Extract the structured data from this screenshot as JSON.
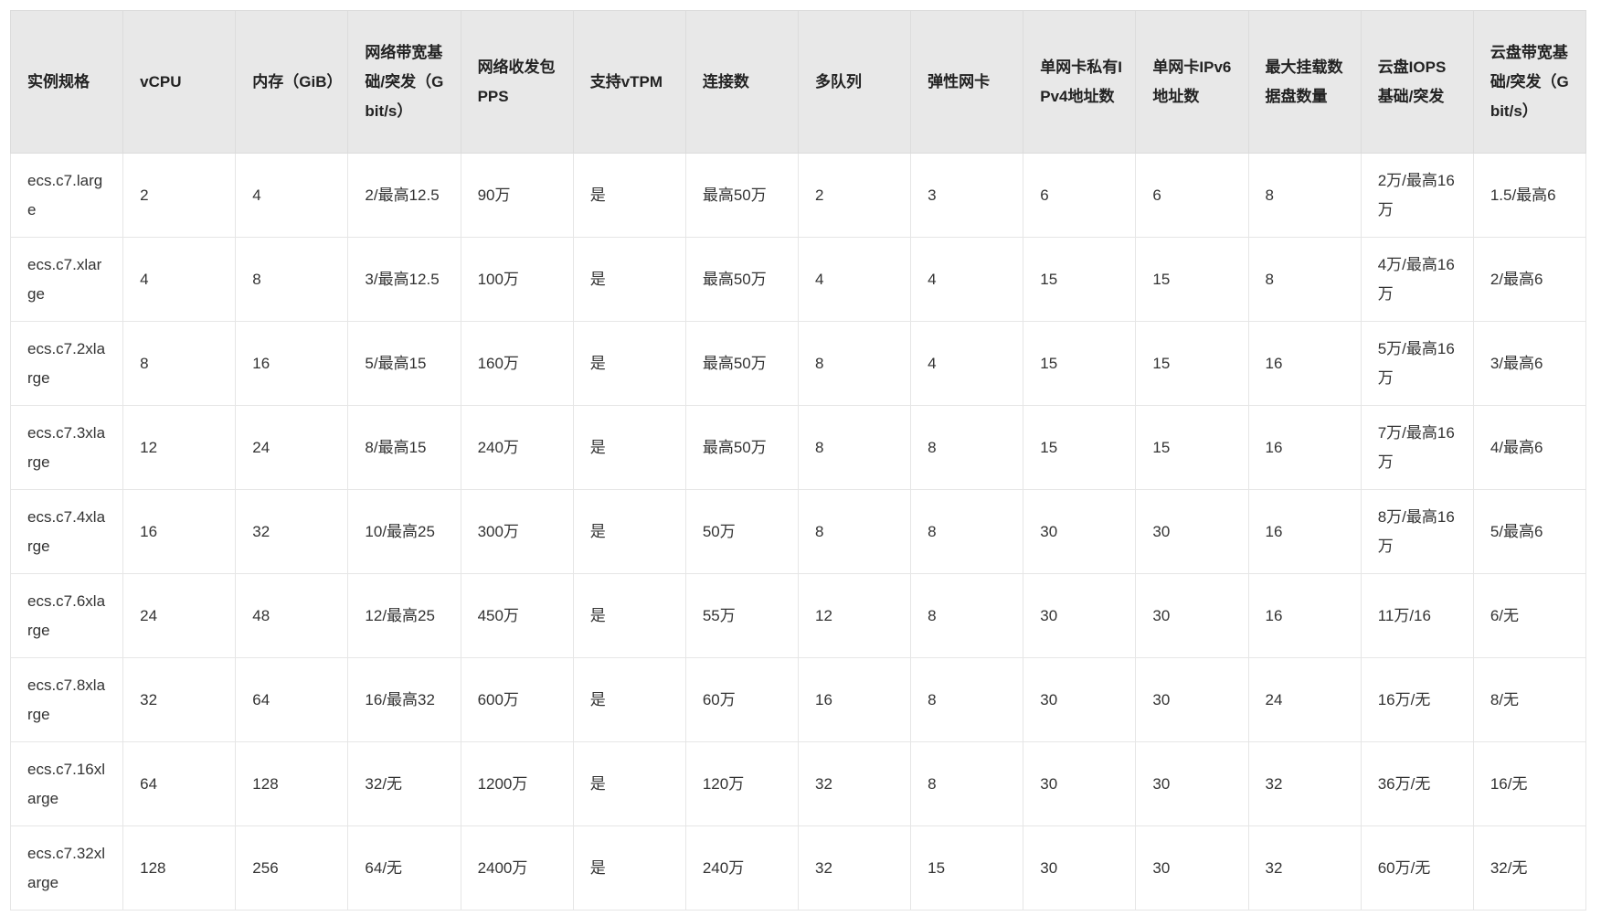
{
  "table": {
    "headers": [
      "实例规格",
      "vCPU",
      "内存（GiB）",
      "网络带宽基础/突发（Gbit/s）",
      "网络收发包PPS",
      "支持vTPM",
      "连接数",
      "多队列",
      "弹性网卡",
      "单网卡私有IPv4地址数",
      "单网卡IPv6地址数",
      "最大挂载数据盘数量",
      "云盘IOPS基础/突发",
      "云盘带宽基础/突发（Gbit/s）"
    ],
    "rows": [
      [
        "ecs.c7.large",
        "2",
        "4",
        "2/最高12.5",
        "90万",
        "是",
        "最高50万",
        "2",
        "3",
        "6",
        "6",
        "8",
        "2万/最高16万",
        "1.5/最高6"
      ],
      [
        "ecs.c7.xlarge",
        "4",
        "8",
        "3/最高12.5",
        "100万",
        "是",
        "最高50万",
        "4",
        "4",
        "15",
        "15",
        "8",
        "4万/最高16万",
        "2/最高6"
      ],
      [
        "ecs.c7.2xlarge",
        "8",
        "16",
        "5/最高15",
        "160万",
        "是",
        "最高50万",
        "8",
        "4",
        "15",
        "15",
        "16",
        "5万/最高16万",
        "3/最高6"
      ],
      [
        "ecs.c7.3xlarge",
        "12",
        "24",
        "8/最高15",
        "240万",
        "是",
        "最高50万",
        "8",
        "8",
        "15",
        "15",
        "16",
        "7万/最高16万",
        "4/最高6"
      ],
      [
        "ecs.c7.4xlarge",
        "16",
        "32",
        "10/最高25",
        "300万",
        "是",
        "50万",
        "8",
        "8",
        "30",
        "30",
        "16",
        "8万/最高16万",
        "5/最高6"
      ],
      [
        "ecs.c7.6xlarge",
        "24",
        "48",
        "12/最高25",
        "450万",
        "是",
        "55万",
        "12",
        "8",
        "30",
        "30",
        "16",
        "11万/16",
        "6/无"
      ],
      [
        "ecs.c7.8xlarge",
        "32",
        "64",
        "16/最高32",
        "600万",
        "是",
        "60万",
        "16",
        "8",
        "30",
        "30",
        "24",
        "16万/无",
        "8/无"
      ],
      [
        "ecs.c7.16xlarge",
        "64",
        "128",
        "32/无",
        "1200万",
        "是",
        "120万",
        "32",
        "8",
        "30",
        "30",
        "32",
        "36万/无",
        "16/无"
      ],
      [
        "ecs.c7.32xlarge",
        "128",
        "256",
        "64/无",
        "2400万",
        "是",
        "240万",
        "32",
        "15",
        "30",
        "30",
        "32",
        "60万/无",
        "32/无"
      ]
    ]
  }
}
